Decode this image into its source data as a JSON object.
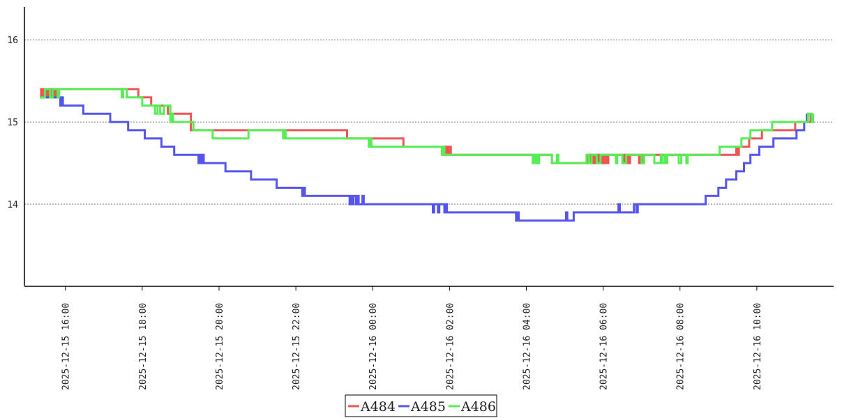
{
  "chart_data": {
    "type": "line",
    "title": "",
    "xlabel": "",
    "ylabel": "",
    "ylim": [
      13.0,
      16.4
    ],
    "xlim": [
      "2025-12-15 14:56",
      "2025-12-16 12:00"
    ],
    "grid": "horizontal dotted",
    "legend_placement": "bottom-center",
    "y_ticks": [
      "14",
      "15",
      "16"
    ],
    "x_ticks": [
      "2025-12-15 16:00",
      "2025-12-15 18:00",
      "2025-12-15 20:00",
      "2025-12-15 22:00",
      "2025-12-16 00:00",
      "2025-12-16 02:00",
      "2025-12-16 04:00",
      "2025-12-16 06:00",
      "2025-12-16 08:00",
      "2025-12-16 10:00"
    ],
    "series": [
      {
        "name": "A484",
        "color": "#ee5555",
        "points": [
          [
            "2025-12-15 15:20",
            15.3
          ],
          [
            "2025-12-15 15:22",
            15.4
          ],
          [
            "2025-12-15 15:24",
            15.3
          ],
          [
            "2025-12-15 15:26",
            15.4
          ],
          [
            "2025-12-15 15:28",
            15.3
          ],
          [
            "2025-12-15 15:30",
            15.4
          ],
          [
            "2025-12-15 15:32",
            15.3
          ],
          [
            "2025-12-15 15:34",
            15.4
          ],
          [
            "2025-12-15 15:36",
            15.3
          ],
          [
            "2025-12-15 15:38",
            15.4
          ],
          [
            "2025-12-15 15:40",
            15.3
          ],
          [
            "2025-12-15 15:42",
            15.4
          ],
          [
            "2025-12-15 15:44",
            15.3
          ],
          [
            "2025-12-15 15:46",
            15.4
          ],
          [
            "2025-12-15 15:48",
            15.3
          ],
          [
            "2025-12-15 15:50",
            15.4
          ],
          [
            "2025-12-15 17:54",
            15.3
          ],
          [
            "2025-12-15 18:14",
            15.2
          ],
          [
            "2025-12-15 18:40",
            15.1
          ],
          [
            "2025-12-15 19:16",
            14.9
          ],
          [
            "2025-12-15 20:00",
            14.9
          ],
          [
            "2025-12-15 21:00",
            14.9
          ],
          [
            "2025-12-15 22:00",
            14.9
          ],
          [
            "2025-12-15 23:00",
            14.9
          ],
          [
            "2025-12-15 23:20",
            14.8
          ],
          [
            "2025-12-16 00:48",
            14.7
          ],
          [
            "2025-12-16 01:50",
            14.6
          ],
          [
            "2025-12-16 01:52",
            14.7
          ],
          [
            "2025-12-16 01:54",
            14.6
          ],
          [
            "2025-12-16 01:56",
            14.7
          ],
          [
            "2025-12-16 01:58",
            14.6
          ],
          [
            "2025-12-16 02:00",
            14.7
          ],
          [
            "2025-12-16 02:02",
            14.6
          ],
          [
            "2025-12-16 04:40",
            14.5
          ],
          [
            "2025-12-16 05:36",
            14.6
          ],
          [
            "2025-12-16 05:38",
            14.5
          ],
          [
            "2025-12-16 05:40",
            14.6
          ],
          [
            "2025-12-16 05:42",
            14.5
          ],
          [
            "2025-12-16 05:44",
            14.6
          ],
          [
            "2025-12-16 05:46",
            14.5
          ],
          [
            "2025-12-16 05:48",
            14.6
          ],
          [
            "2025-12-16 05:50",
            14.5
          ],
          [
            "2025-12-16 05:52",
            14.6
          ],
          [
            "2025-12-16 05:54",
            14.5
          ],
          [
            "2025-12-16 05:56",
            14.6
          ],
          [
            "2025-12-16 05:58",
            14.5
          ],
          [
            "2025-12-16 06:00",
            14.6
          ],
          [
            "2025-12-16 06:02",
            14.5
          ],
          [
            "2025-12-16 06:04",
            14.6
          ],
          [
            "2025-12-16 06:06",
            14.5
          ],
          [
            "2025-12-16 06:08",
            14.6
          ],
          [
            "2025-12-16 06:30",
            14.6
          ],
          [
            "2025-12-16 06:32",
            14.5
          ],
          [
            "2025-12-16 06:34",
            14.6
          ],
          [
            "2025-12-16 06:36",
            14.5
          ],
          [
            "2025-12-16 06:38",
            14.6
          ],
          [
            "2025-12-16 06:40",
            14.5
          ],
          [
            "2025-12-16 06:42",
            14.6
          ],
          [
            "2025-12-16 06:56",
            14.5
          ],
          [
            "2025-12-16 06:58",
            14.6
          ],
          [
            "2025-12-16 07:00",
            14.5
          ],
          [
            "2025-12-16 07:02",
            14.6
          ],
          [
            "2025-12-16 09:28",
            14.7
          ],
          [
            "2025-12-16 09:30",
            14.6
          ],
          [
            "2025-12-16 09:32",
            14.7
          ],
          [
            "2025-12-16 09:48",
            14.8
          ],
          [
            "2025-12-16 10:08",
            14.9
          ],
          [
            "2025-12-16 11:00",
            15.0
          ],
          [
            "2025-12-16 11:24",
            15.1
          ]
        ]
      },
      {
        "name": "A485",
        "color": "#5555ee",
        "points": [
          [
            "2025-12-15 15:20",
            15.3
          ],
          [
            "2025-12-15 15:52",
            15.2
          ],
          [
            "2025-12-15 15:54",
            15.3
          ],
          [
            "2025-12-15 15:56",
            15.2
          ],
          [
            "2025-12-15 16:28",
            15.1
          ],
          [
            "2025-12-15 17:10",
            15.0
          ],
          [
            "2025-12-15 17:38",
            14.9
          ],
          [
            "2025-12-15 18:04",
            14.8
          ],
          [
            "2025-12-15 18:30",
            14.7
          ],
          [
            "2025-12-15 18:50",
            14.6
          ],
          [
            "2025-12-15 19:00",
            14.6
          ],
          [
            "2025-12-15 19:28",
            14.5
          ],
          [
            "2025-12-15 19:30",
            14.6
          ],
          [
            "2025-12-15 19:32",
            14.5
          ],
          [
            "2025-12-15 19:34",
            14.6
          ],
          [
            "2025-12-15 19:36",
            14.5
          ],
          [
            "2025-12-15 20:10",
            14.4
          ],
          [
            "2025-12-15 20:50",
            14.3
          ],
          [
            "2025-12-15 21:30",
            14.2
          ],
          [
            "2025-12-15 22:08",
            14.2
          ],
          [
            "2025-12-15 22:10",
            14.1
          ],
          [
            "2025-12-15 22:12",
            14.2
          ],
          [
            "2025-12-15 22:14",
            14.1
          ],
          [
            "2025-12-15 23:24",
            14.0
          ],
          [
            "2025-12-15 23:26",
            14.1
          ],
          [
            "2025-12-15 23:28",
            14.0
          ],
          [
            "2025-12-15 23:30",
            14.1
          ],
          [
            "2025-12-15 23:34",
            14.0
          ],
          [
            "2025-12-15 23:36",
            14.1
          ],
          [
            "2025-12-15 23:38",
            14.0
          ],
          [
            "2025-12-15 23:44",
            14.1
          ],
          [
            "2025-12-15 23:46",
            14.0
          ],
          [
            "2025-12-16 01:34",
            13.9
          ],
          [
            "2025-12-16 01:36",
            14.0
          ],
          [
            "2025-12-16 01:42",
            13.9
          ],
          [
            "2025-12-16 01:44",
            14.0
          ],
          [
            "2025-12-16 01:52",
            13.9
          ],
          [
            "2025-12-16 01:54",
            14.0
          ],
          [
            "2025-12-16 01:56",
            13.9
          ],
          [
            "2025-12-16 03:44",
            13.8
          ],
          [
            "2025-12-16 03:46",
            13.9
          ],
          [
            "2025-12-16 03:48",
            13.8
          ],
          [
            "2025-12-16 05:00",
            13.8
          ],
          [
            "2025-12-16 05:02",
            13.9
          ],
          [
            "2025-12-16 05:04",
            13.8
          ],
          [
            "2025-12-16 05:14",
            13.9
          ],
          [
            "2025-12-16 06:24",
            14.0
          ],
          [
            "2025-12-16 06:26",
            13.9
          ],
          [
            "2025-12-16 06:48",
            14.0
          ],
          [
            "2025-12-16 06:52",
            13.9
          ],
          [
            "2025-12-16 06:54",
            14.0
          ],
          [
            "2025-12-16 08:40",
            14.1
          ],
          [
            "2025-12-16 09:00",
            14.2
          ],
          [
            "2025-12-16 09:12",
            14.3
          ],
          [
            "2025-12-16 09:28",
            14.4
          ],
          [
            "2025-12-16 09:40",
            14.5
          ],
          [
            "2025-12-16 09:50",
            14.6
          ],
          [
            "2025-12-16 10:04",
            14.7
          ],
          [
            "2025-12-16 10:26",
            14.8
          ],
          [
            "2025-12-16 11:02",
            14.9
          ],
          [
            "2025-12-16 11:14",
            15.0
          ],
          [
            "2025-12-16 11:18",
            15.1
          ]
        ]
      },
      {
        "name": "A486",
        "color": "#55ee55",
        "points": [
          [
            "2025-12-15 15:20",
            15.3
          ],
          [
            "2025-12-15 15:28",
            15.4
          ],
          [
            "2025-12-15 15:36",
            15.3
          ],
          [
            "2025-12-15 15:40",
            15.4
          ],
          [
            "2025-12-15 15:48",
            15.3
          ],
          [
            "2025-12-15 15:50",
            15.4
          ],
          [
            "2025-12-15 17:28",
            15.3
          ],
          [
            "2025-12-15 17:30",
            15.4
          ],
          [
            "2025-12-15 17:36",
            15.3
          ],
          [
            "2025-12-15 18:00",
            15.2
          ],
          [
            "2025-12-15 18:20",
            15.1
          ],
          [
            "2025-12-15 18:24",
            15.2
          ],
          [
            "2025-12-15 18:28",
            15.1
          ],
          [
            "2025-12-15 18:34",
            15.2
          ],
          [
            "2025-12-15 18:44",
            15.0
          ],
          [
            "2025-12-15 18:46",
            15.1
          ],
          [
            "2025-12-15 18:48",
            15.0
          ],
          [
            "2025-12-15 19:20",
            14.9
          ],
          [
            "2025-12-15 19:50",
            14.8
          ],
          [
            "2025-12-15 20:46",
            14.9
          ],
          [
            "2025-12-15 21:40",
            14.8
          ],
          [
            "2025-12-15 21:42",
            14.9
          ],
          [
            "2025-12-15 21:44",
            14.8
          ],
          [
            "2025-12-15 23:54",
            14.7
          ],
          [
            "2025-12-15 23:56",
            14.8
          ],
          [
            "2025-12-15 23:58",
            14.7
          ],
          [
            "2025-12-16 00:48",
            14.7
          ],
          [
            "2025-12-16 01:48",
            14.6
          ],
          [
            "2025-12-16 01:50",
            14.7
          ],
          [
            "2025-12-16 01:52",
            14.6
          ],
          [
            "2025-12-16 04:10",
            14.5
          ],
          [
            "2025-12-16 04:12",
            14.6
          ],
          [
            "2025-12-16 04:14",
            14.5
          ],
          [
            "2025-12-16 04:16",
            14.6
          ],
          [
            "2025-12-16 04:18",
            14.5
          ],
          [
            "2025-12-16 04:20",
            14.6
          ],
          [
            "2025-12-16 04:40",
            14.5
          ],
          [
            "2025-12-16 04:48",
            14.6
          ],
          [
            "2025-12-16 04:50",
            14.5
          ],
          [
            "2025-12-16 05:34",
            14.6
          ],
          [
            "2025-12-16 05:38",
            14.5
          ],
          [
            "2025-12-16 05:42",
            14.6
          ],
          [
            "2025-12-16 05:50",
            14.5
          ],
          [
            "2025-12-16 05:56",
            14.6
          ],
          [
            "2025-12-16 06:20",
            14.5
          ],
          [
            "2025-12-16 06:22",
            14.6
          ],
          [
            "2025-12-16 06:30",
            14.5
          ],
          [
            "2025-12-16 06:36",
            14.6
          ],
          [
            "2025-12-16 07:00",
            14.5
          ],
          [
            "2025-12-16 07:04",
            14.6
          ],
          [
            "2025-12-16 07:20",
            14.5
          ],
          [
            "2025-12-16 07:30",
            14.6
          ],
          [
            "2025-12-16 07:32",
            14.5
          ],
          [
            "2025-12-16 07:36",
            14.6
          ],
          [
            "2025-12-16 07:38",
            14.5
          ],
          [
            "2025-12-16 07:40",
            14.6
          ],
          [
            "2025-12-16 07:58",
            14.5
          ],
          [
            "2025-12-16 08:02",
            14.6
          ],
          [
            "2025-12-16 08:10",
            14.5
          ],
          [
            "2025-12-16 08:12",
            14.6
          ],
          [
            "2025-12-16 09:02",
            14.7
          ],
          [
            "2025-12-16 09:36",
            14.8
          ],
          [
            "2025-12-16 09:50",
            14.9
          ],
          [
            "2025-12-16 10:24",
            15.0
          ],
          [
            "2025-12-16 11:20",
            15.1
          ],
          [
            "2025-12-16 11:26",
            15.0
          ],
          [
            "2025-12-16 11:28",
            15.1
          ]
        ]
      }
    ]
  }
}
